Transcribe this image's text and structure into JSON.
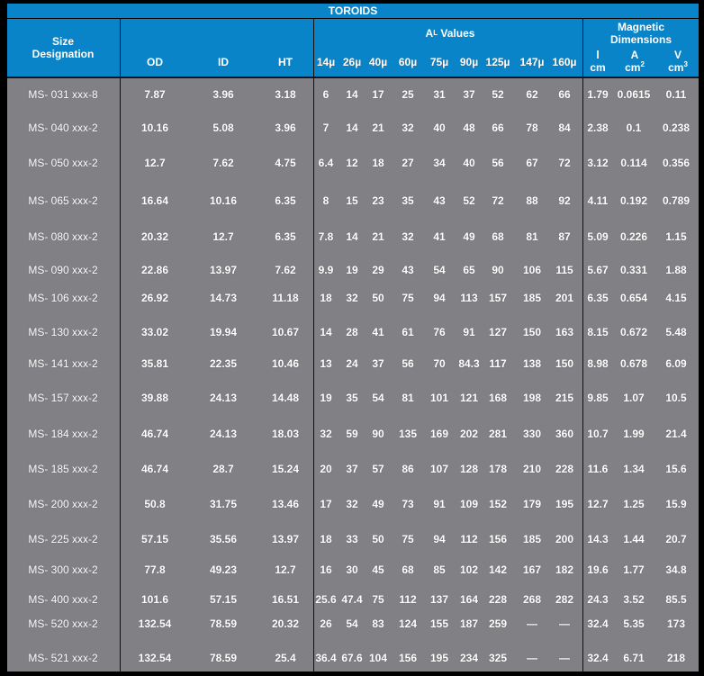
{
  "title": "TOROIDS",
  "header": {
    "size": "Size Designation",
    "od": "OD",
    "id": "ID",
    "ht": "HT",
    "al_main": "A",
    "al_sub": "L",
    "al_rest": " Values",
    "permeabilities": [
      "14µ",
      "26µ",
      "40µ",
      "60µ",
      "75µ",
      "90µ",
      "125µ",
      "147µ",
      "160µ"
    ],
    "magnetic": "Magnetic Dimensions",
    "l_label": "l",
    "l_unit": "cm",
    "a_label": "A",
    "a_unit": "cm",
    "a_exp": "2",
    "v_label": "V",
    "v_unit": "cm",
    "v_exp": "3"
  },
  "colors": {
    "header_bg": "#0a84c8",
    "body_bg": "#808085"
  },
  "rows": [
    [
      "MS- 031 xxx-8",
      "7.87",
      "3.96",
      "3.18",
      "6",
      "14",
      "17",
      "25",
      "31",
      "37",
      "52",
      "62",
      "66",
      "1.79",
      "0.0615",
      "0.11"
    ],
    [
      "MS- 040 xxx-2",
      "10.16",
      "5.08",
      "3.96",
      "7",
      "14",
      "21",
      "32",
      "40",
      "48",
      "66",
      "78",
      "84",
      "2.38",
      "0.1",
      "0.238"
    ],
    [
      "MS- 050 xxx-2",
      "12.7",
      "7.62",
      "4.75",
      "6.4",
      "12",
      "18",
      "27",
      "34",
      "40",
      "56",
      "67",
      "72",
      "3.12",
      "0.114",
      "0.356"
    ],
    [
      "MS- 065 xxx-2",
      "16.64",
      "10.16",
      "6.35",
      "8",
      "15",
      "23",
      "35",
      "43",
      "52",
      "72",
      "88",
      "92",
      "4.11",
      "0.192",
      "0.789"
    ],
    [
      "MS- 080 xxx-2",
      "20.32",
      "12.7",
      "6.35",
      "7.8",
      "14",
      "21",
      "32",
      "41",
      "49",
      "68",
      "81",
      "87",
      "5.09",
      "0.226",
      "1.15"
    ],
    [
      "MS- 090 xxx-2",
      "22.86",
      "13.97",
      "7.62",
      "9.9",
      "19",
      "29",
      "43",
      "54",
      "65",
      "90",
      "106",
      "115",
      "5.67",
      "0.331",
      "1.88"
    ],
    [
      "MS- 106 xxx-2",
      "26.92",
      "14.73",
      "11.18",
      "18",
      "32",
      "50",
      "75",
      "94",
      "113",
      "157",
      "185",
      "201",
      "6.35",
      "0.654",
      "4.15"
    ],
    [
      "MS- 130 xxx-2",
      "33.02",
      "19.94",
      "10.67",
      "14",
      "28",
      "41",
      "61",
      "76",
      "91",
      "127",
      "150",
      "163",
      "8.15",
      "0.672",
      "5.48"
    ],
    [
      "MS- 141 xxx-2",
      "35.81",
      "22.35",
      "10.46",
      "13",
      "24",
      "37",
      "56",
      "70",
      "84.3",
      "117",
      "138",
      "150",
      "8.98",
      "0.678",
      "6.09"
    ],
    [
      "MS- 157 xxx-2",
      "39.88",
      "24.13",
      "14.48",
      "19",
      "35",
      "54",
      "81",
      "101",
      "121",
      "168",
      "198",
      "215",
      "9.85",
      "1.07",
      "10.5"
    ],
    [
      "MS- 184 xxx-2",
      "46.74",
      "24.13",
      "18.03",
      "32",
      "59",
      "90",
      "135",
      "169",
      "202",
      "281",
      "330",
      "360",
      "10.7",
      "1.99",
      "21.4"
    ],
    [
      "MS- 185 xxx-2",
      "46.74",
      "28.7",
      "15.24",
      "20",
      "37",
      "57",
      "86",
      "107",
      "128",
      "178",
      "210",
      "228",
      "11.6",
      "1.34",
      "15.6"
    ],
    [
      "MS- 200 xxx-2",
      "50.8",
      "31.75",
      "13.46",
      "17",
      "32",
      "49",
      "73",
      "91",
      "109",
      "152",
      "179",
      "195",
      "12.7",
      "1.25",
      "15.9"
    ],
    [
      "MS- 225 xxx-2",
      "57.15",
      "35.56",
      "13.97",
      "18",
      "33",
      "50",
      "75",
      "94",
      "112",
      "156",
      "185",
      "200",
      "14.3",
      "1.44",
      "20.7"
    ],
    [
      "MS- 300 xxx-2",
      "77.8",
      "49.23",
      "12.7",
      "16",
      "30",
      "45",
      "68",
      "85",
      "102",
      "142",
      "167",
      "182",
      "19.6",
      "1.77",
      "34.8"
    ],
    [
      "MS- 400 xxx-2",
      "101.6",
      "57.15",
      "16.51",
      "25.6",
      "47.4",
      "75",
      "112",
      "137",
      "164",
      "228",
      "268",
      "282",
      "24.3",
      "3.52",
      "85.5"
    ],
    [
      "MS- 520 xxx-2",
      "132.54",
      "78.59",
      "20.32",
      "26",
      "54",
      "83",
      "124",
      "155",
      "187",
      "259",
      "—",
      "—",
      "32.4",
      "5.35",
      "173"
    ],
    [
      "MS- 521 xxx-2",
      "132.54",
      "78.59",
      "25.4",
      "36.4",
      "67.6",
      "104",
      "156",
      "195",
      "234",
      "325",
      "—",
      "—",
      "32.4",
      "6.71",
      "218"
    ]
  ]
}
